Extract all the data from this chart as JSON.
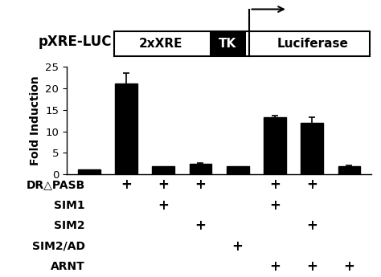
{
  "bar_values": [
    1.2,
    21.0,
    2.0,
    2.4,
    2.0,
    13.3,
    12.0,
    2.0
  ],
  "bar_errors": [
    0.0,
    2.5,
    0.0,
    0.3,
    0.0,
    0.4,
    1.2,
    0.2
  ],
  "bar_color": "#000000",
  "ylim": [
    0,
    25
  ],
  "yticks": [
    0,
    5,
    10,
    15,
    20,
    25
  ],
  "ylabel": "Fold Induction",
  "bar_width": 0.6,
  "table_labels": [
    "DR△PASB",
    "SIM1",
    "SIM2",
    "SIM2/AD",
    "ARNT"
  ],
  "table_plus": [
    [
      false,
      true,
      true,
      true,
      false,
      true,
      true,
      false
    ],
    [
      false,
      false,
      true,
      false,
      false,
      true,
      false,
      false
    ],
    [
      false,
      false,
      false,
      true,
      false,
      false,
      true,
      false
    ],
    [
      false,
      false,
      false,
      false,
      true,
      false,
      false,
      false
    ],
    [
      false,
      false,
      false,
      false,
      false,
      true,
      true,
      true
    ]
  ],
  "diagram_label": "pXRE-LUC",
  "diagram_boxes": [
    {
      "text": "2xXRE",
      "facecolor": "white",
      "edgecolor": "black",
      "textcolor": "black"
    },
    {
      "text": "TK",
      "facecolor": "black",
      "edgecolor": "black",
      "textcolor": "white"
    },
    {
      "text": "Luciferase",
      "facecolor": "white",
      "edgecolor": "black",
      "textcolor": "black"
    }
  ],
  "background_color": "white",
  "font_size_ylabel": 10,
  "font_size_table": 10,
  "font_size_diagram": 11,
  "font_size_diagram_label": 12
}
